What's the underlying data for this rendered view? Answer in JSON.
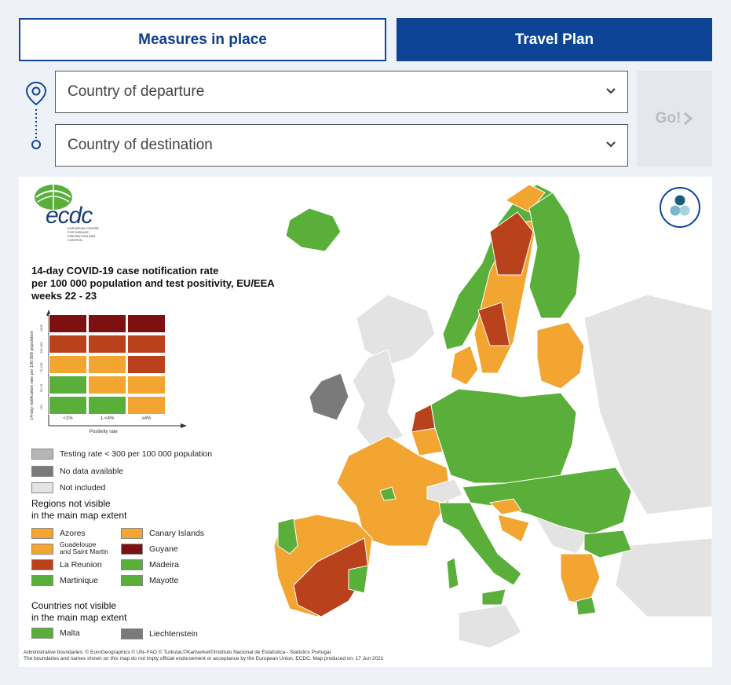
{
  "tabs": {
    "measures_label": "Measures in place",
    "travel_label": "Travel Plan"
  },
  "route": {
    "departure_placeholder": "Country of departure",
    "destination_placeholder": "Country of destination",
    "go_label": "Go!"
  },
  "map": {
    "logo_text": "ecdc",
    "logo_subtitle": "EUROPEAN CENTRE FOR DISEASE PREVENTION AND CONTROL",
    "title_line1": "14-day COVID-19 case notification rate",
    "title_line2": "per 100 000 population and test positivity, EU/EEA",
    "title_line3": "weeks 22 - 23",
    "matrix_ytitle": "14-day notification rate per 100 000 population",
    "matrix_rows": [
      "≥500",
      "200-499",
      "75-199",
      "50-74",
      "<50"
    ],
    "matrix_cols": [
      "<1%",
      "1-<4%",
      "≥4%"
    ],
    "matrix_xtitle": "Positivity rate",
    "legend_testing": "Testing rate < 300 per 100 000 population",
    "legend_nodata": "No data available",
    "legend_notincluded": "Not included",
    "regions_heading_1": "Regions not visible",
    "regions_heading_2": "in the main map extent",
    "regions": {
      "azores": "Azores",
      "canary": "Canary Islands",
      "guadeloupe_1": "Guadeloupe",
      "guadeloupe_2": "and Saint Martin",
      "guyane": "Guyane",
      "reunion": "La Reunion",
      "madeira": "Madeira",
      "martinique": "Martinique",
      "mayotte": "Mayotte"
    },
    "countries_heading_1": "Countries not visible",
    "countries_heading_2": "in the main map extent",
    "countries": {
      "malta": "Malta",
      "liechtenstein": "Liechtenstein"
    },
    "footer_line1": "Administrative boundaries: © EuroGeographics © UN–FAO © Turkstat.©Kartverket©Instituto Nacional de Estatística - Statistics Portugal.",
    "footer_line2": "The boundaries and names shown on this map do not imply official endorsement or acceptance by the European Union. ECDC. Map produced on: 17 Jun 2021"
  },
  "colors": {
    "green": "#5aae3a",
    "orange": "#f2a531",
    "red": "#b9411c",
    "darkred": "#7d1010",
    "grey_testing": "#b6b6b6",
    "grey_nodata": "#7a7a7a",
    "grey_notincluded": "#e3e3e3",
    "accent_blue": "#0e4496"
  }
}
